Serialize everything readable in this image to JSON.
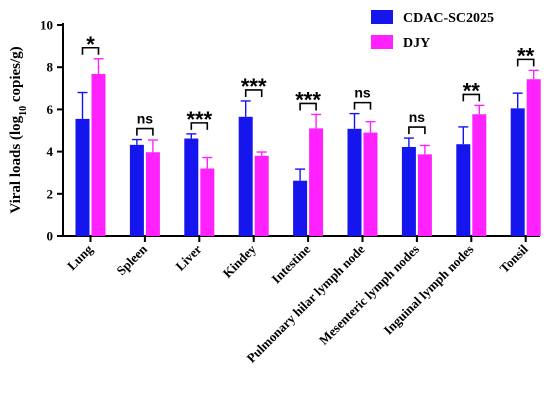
{
  "chart_data": {
    "type": "bar",
    "ylabel": {
      "prefix": "Viral loads (log",
      "subscript": "10",
      "suffix": " copies/g)"
    },
    "ylim": [
      0,
      10
    ],
    "yticks": [
      "0",
      "2",
      "4",
      "6",
      "8",
      "10"
    ],
    "categories": [
      "Lung",
      "Spleen",
      "Liver",
      "Kindey",
      "Intestine",
      "Pulmonary hilar lymph node",
      "Mesenteric lymph nodes",
      "Inguinal lymph nodes",
      "Tonsil"
    ],
    "series": [
      {
        "name": "CDAC-SC2025",
        "color": "#1515ee",
        "values": [
          5.55,
          4.32,
          4.62,
          5.65,
          2.62,
          5.08,
          4.22,
          4.35,
          6.05
        ],
        "errors": [
          1.25,
          0.25,
          0.22,
          0.75,
          0.55,
          0.72,
          0.42,
          0.82,
          0.72
        ]
      },
      {
        "name": "DJY",
        "color": "#ff22ff",
        "values": [
          7.68,
          3.97,
          3.2,
          3.8,
          5.1,
          4.9,
          3.87,
          5.77,
          7.43
        ],
        "errors": [
          0.72,
          0.58,
          0.52,
          0.18,
          0.66,
          0.52,
          0.42,
          0.42,
          0.42
        ]
      }
    ],
    "significance": [
      "*",
      "ns",
      "***",
      "***",
      "***",
      "ns",
      "ns",
      "**",
      "**"
    ],
    "grid": false,
    "legend_position": "top-right"
  }
}
